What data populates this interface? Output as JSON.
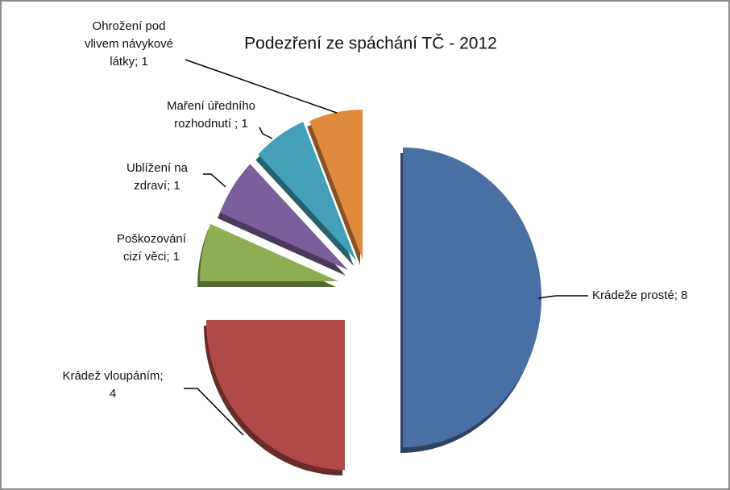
{
  "chart_data": {
    "type": "pie",
    "title": "Podezření ze spáchání TČ - 2012",
    "values": [
      8,
      4,
      1,
      1,
      1,
      1
    ],
    "value_labels": [
      [
        "Krádeže prosté; 8"
      ],
      [
        "Krádež vloupáním;",
        "4"
      ],
      [
        "Poškozování",
        "cizí věci; 1"
      ],
      [
        "Ublížení na",
        "zdraví; 1"
      ],
      [
        "Maření úředního",
        "rozhodnutí ; 1"
      ],
      [
        "Ohrožení pod",
        "vlivem návykové",
        "látky; 1"
      ]
    ],
    "colors": [
      "#4a6fa5",
      "#b04a48",
      "#8fad55",
      "#7a5f9a",
      "#43a0b8",
      "#e08a3e"
    ]
  }
}
